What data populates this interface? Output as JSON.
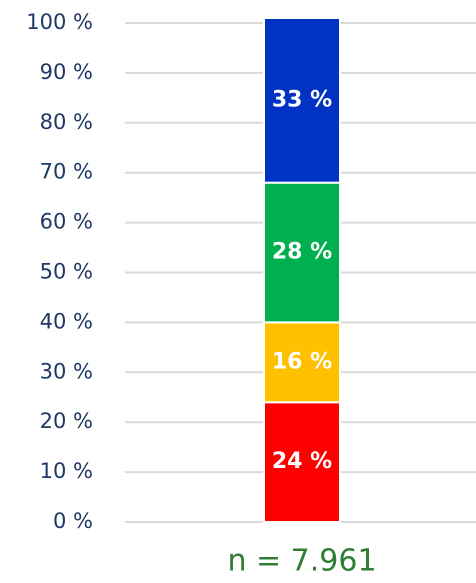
{
  "chart_data": {
    "type": "stacked_bar",
    "categories": [
      "n = 7.961"
    ],
    "series": [
      {
        "color": "#ff0000",
        "values": [
          24
        ],
        "value_labels": [
          "24 %"
        ]
      },
      {
        "color": "#ffc000",
        "values": [
          16
        ],
        "value_labels": [
          "16 %"
        ]
      },
      {
        "color": "#00b050",
        "values": [
          28
        ],
        "value_labels": [
          "28 %"
        ]
      },
      {
        "color": "#0033c4",
        "values": [
          33
        ],
        "value_labels": [
          "33 %"
        ]
      }
    ],
    "ylim": [
      0,
      100
    ],
    "yticks": [
      {
        "value": 0,
        "label": "0 %"
      },
      {
        "value": 10,
        "label": "10 %"
      },
      {
        "value": 20,
        "label": "20 %"
      },
      {
        "value": 30,
        "label": "30 %"
      },
      {
        "value": 40,
        "label": "40 %"
      },
      {
        "value": 50,
        "label": "50 %"
      },
      {
        "value": 60,
        "label": "60 %"
      },
      {
        "value": 70,
        "label": "70 %"
      },
      {
        "value": 80,
        "label": "80 %"
      },
      {
        "value": 90,
        "label": "90 %"
      },
      {
        "value": 100,
        "label": "100 %"
      }
    ],
    "grid": true
  }
}
